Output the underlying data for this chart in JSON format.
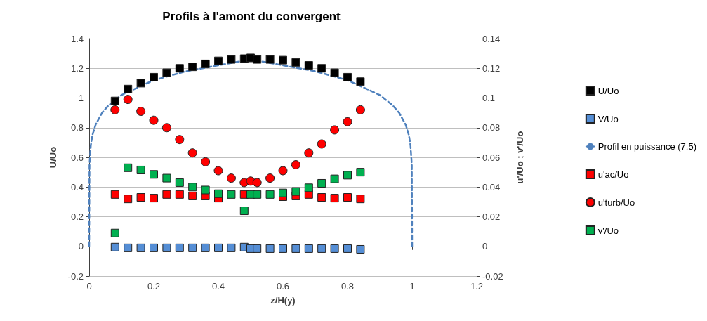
{
  "chart_data": {
    "type": "scatter",
    "title": "Profils à l'amont du convergent",
    "xlabel": "z/H(y)",
    "ylabel": "U/Uo",
    "y2label": "u'/Uo ; v'/Uo",
    "xlim": [
      0,
      1.2
    ],
    "xticks": [
      0,
      0.2,
      0.4,
      0.6,
      0.8,
      1,
      1.2
    ],
    "ylim": [
      -0.2,
      1.4
    ],
    "yticks": [
      -0.2,
      0,
      0.2,
      0.4,
      0.6,
      0.8,
      1,
      1.2,
      1.4
    ],
    "y2lim": [
      -0.02,
      0.14
    ],
    "y2ticks": [
      -0.02,
      0,
      0.02,
      0.04,
      0.06,
      0.08,
      0.1,
      0.12,
      0.14
    ],
    "grid": "y",
    "legend": "right",
    "x": [
      0.08,
      0.12,
      0.16,
      0.2,
      0.24,
      0.28,
      0.32,
      0.36,
      0.4,
      0.44,
      0.48,
      0.5,
      0.52,
      0.56,
      0.6,
      0.64,
      0.68,
      0.72,
      0.76,
      0.8,
      0.84
    ],
    "series": [
      {
        "name": "U/Uo",
        "marker": "square",
        "color": "#000000",
        "values": [
          0.98,
          1.06,
          1.1,
          1.14,
          1.17,
          1.2,
          1.21,
          1.23,
          1.25,
          1.26,
          1.265,
          1.27,
          1.26,
          1.26,
          1.255,
          1.24,
          1.22,
          1.2,
          1.17,
          1.14,
          1.11
        ]
      },
      {
        "name": "V/Uo",
        "marker": "square",
        "color": "#558ed5",
        "values": [
          -0.005,
          -0.01,
          -0.01,
          -0.01,
          -0.01,
          -0.01,
          -0.01,
          -0.01,
          -0.01,
          -0.01,
          -0.005,
          -0.015,
          -0.015,
          -0.015,
          -0.015,
          -0.015,
          -0.015,
          -0.015,
          -0.015,
          -0.015,
          -0.02
        ]
      },
      {
        "name": "Profil en puissance (7.5)",
        "type": "line",
        "marker": "none",
        "line_style": "dashed",
        "color": "#4f81bd",
        "x": [
          0,
          0.001,
          0.005,
          0.01,
          0.02,
          0.04,
          0.06,
          0.1,
          0.15,
          0.2,
          0.3,
          0.4,
          0.5,
          0.6,
          0.7,
          0.8,
          0.85,
          0.9,
          0.94,
          0.96,
          0.98,
          0.99,
          0.995,
          0.999,
          1
        ],
        "values": [
          0,
          0.55,
          0.68,
          0.75,
          0.82,
          0.9,
          0.95,
          1.02,
          1.07,
          1.12,
          1.18,
          1.22,
          1.26,
          1.22,
          1.18,
          1.12,
          1.07,
          1.02,
          0.95,
          0.9,
          0.82,
          0.75,
          0.68,
          0.55,
          0
        ]
      },
      {
        "name": "u'ac/Uo",
        "marker": "square",
        "axis": "y2",
        "color": "#ff0000",
        "values": [
          0.035,
          0.032,
          0.033,
          0.0325,
          0.035,
          0.035,
          0.034,
          0.034,
          0.0325,
          null,
          0.035,
          null,
          null,
          null,
          0.0335,
          0.034,
          0.035,
          0.033,
          0.0325,
          0.033,
          0.032
        ]
      },
      {
        "name": "u'turb/Uo",
        "marker": "circle",
        "axis": "y2",
        "color": "#ff0000",
        "values": [
          0.092,
          0.099,
          0.091,
          0.085,
          0.08,
          0.072,
          0.063,
          0.057,
          0.051,
          0.046,
          0.043,
          0.044,
          0.043,
          0.046,
          0.051,
          0.055,
          0.063,
          0.069,
          0.0785,
          0.084,
          0.092
        ]
      },
      {
        "name": "v'/Uo",
        "marker": "square",
        "axis": "y2",
        "color": "#00b050",
        "values": [
          0.009,
          0.053,
          0.0515,
          0.0485,
          0.046,
          0.043,
          0.04,
          0.038,
          0.0355,
          0.035,
          0.024,
          0.035,
          0.035,
          0.035,
          0.036,
          0.037,
          0.0395,
          0.0425,
          0.0455,
          0.048,
          0.05
        ]
      }
    ]
  }
}
